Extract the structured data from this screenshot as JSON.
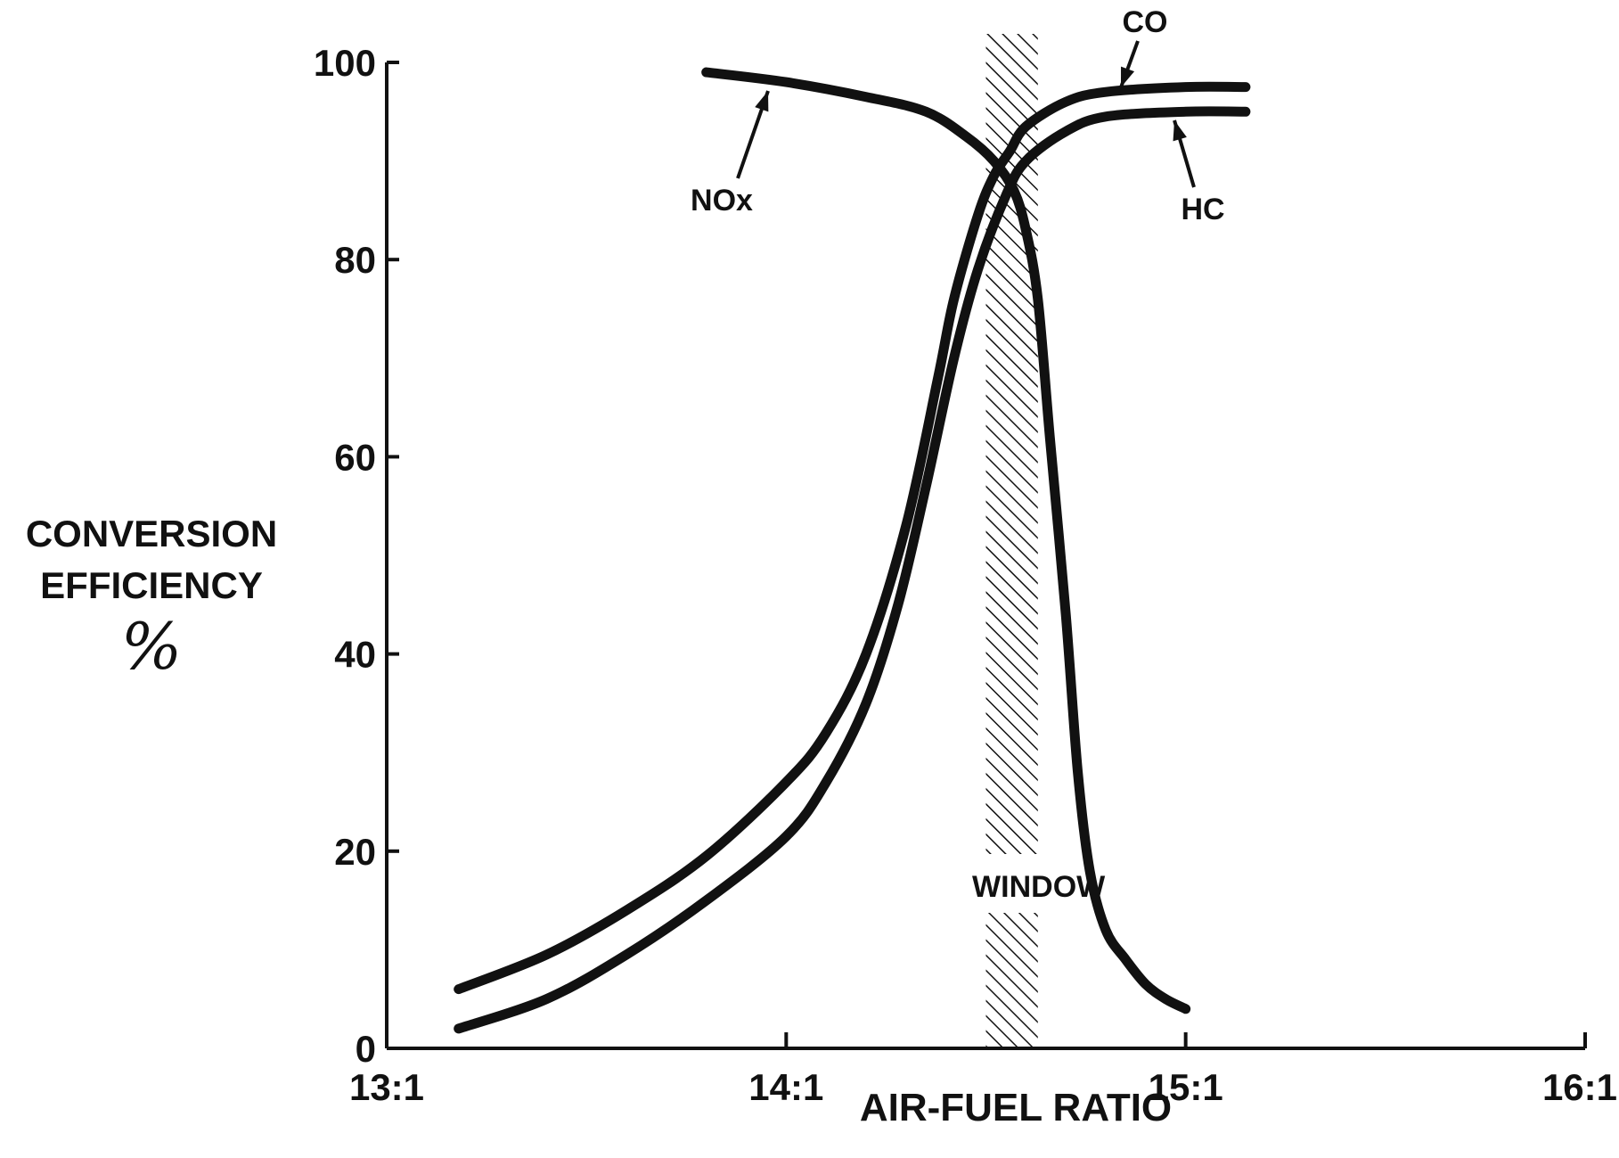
{
  "chart_data": {
    "type": "line",
    "title": "",
    "xlabel": "AIR-FUEL RATIO",
    "ylabel_lines": [
      "CONVERSION",
      "EFFICIENCY",
      "%"
    ],
    "xlim": [
      13.0,
      16.0
    ],
    "ylim": [
      0,
      100
    ],
    "x_ticks": [
      13.0,
      14.0,
      15.0,
      16.0
    ],
    "x_tick_labels": [
      "13:1",
      "14:1",
      "15:1",
      "16:1"
    ],
    "y_ticks": [
      0,
      20,
      40,
      60,
      80,
      100
    ],
    "y_tick_labels": [
      "0",
      "20",
      "40",
      "60",
      "80",
      "100"
    ],
    "grid": false,
    "legend": "none",
    "window": {
      "label": "WINDOW",
      "x_range": [
        14.5,
        14.63
      ]
    },
    "series": [
      {
        "name": "NOx",
        "x": [
          13.8,
          14.0,
          14.2,
          14.35,
          14.45,
          14.52,
          14.57,
          14.6,
          14.63,
          14.66,
          14.7,
          14.73,
          14.76,
          14.8,
          14.85,
          14.9,
          14.95,
          15.0
        ],
        "y": [
          99,
          98,
          96.5,
          95,
          92.5,
          90,
          87,
          83,
          76,
          62,
          44,
          28,
          18,
          12,
          9,
          6.5,
          5,
          4
        ]
      },
      {
        "name": "CO",
        "x": [
          13.18,
          13.4,
          13.6,
          13.8,
          14.0,
          14.1,
          14.2,
          14.3,
          14.38,
          14.42,
          14.48,
          14.52,
          14.56,
          14.6,
          14.7,
          14.8,
          15.0,
          15.15
        ],
        "y": [
          6,
          9.5,
          14,
          19.5,
          27,
          32,
          40,
          53,
          68,
          76,
          84.5,
          88.5,
          91,
          93.5,
          96,
          97,
          97.5,
          97.5
        ]
      },
      {
        "name": "HC",
        "x": [
          13.18,
          13.4,
          13.6,
          13.8,
          14.0,
          14.1,
          14.2,
          14.28,
          14.35,
          14.42,
          14.48,
          14.55,
          14.6,
          14.7,
          14.8,
          15.0,
          15.15
        ],
        "y": [
          2,
          5,
          9.5,
          15,
          21.5,
          27,
          35,
          45,
          57,
          70,
          79,
          86.5,
          90,
          93,
          94.5,
          95,
          95
        ]
      }
    ],
    "annotations": [
      {
        "text": "NOx",
        "points_to": "NOx"
      },
      {
        "text": "CO",
        "points_to": "CO"
      },
      {
        "text": "HC",
        "points_to": "HC"
      },
      {
        "text": "WINDOW",
        "points_to": "window"
      }
    ]
  }
}
